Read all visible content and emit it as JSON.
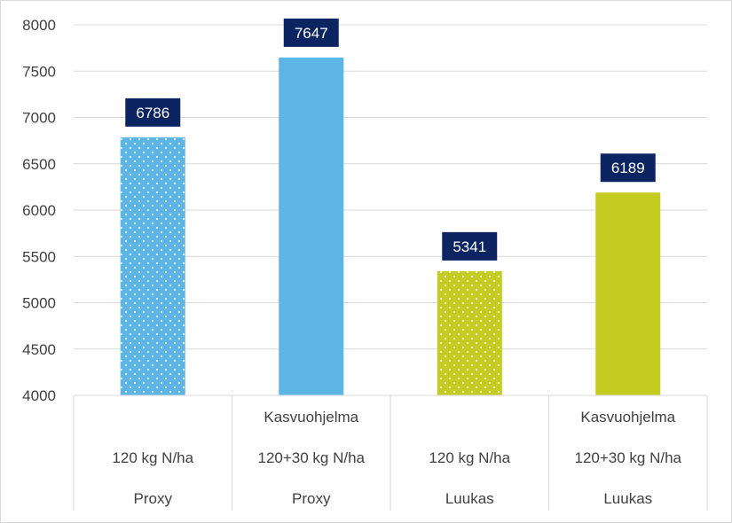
{
  "chart_data": {
    "type": "bar",
    "ylim": [
      4000,
      8000
    ],
    "yticks": [
      4000,
      4500,
      5000,
      5500,
      6000,
      6500,
      7000,
      7500,
      8000
    ],
    "grid": true,
    "categories": [
      [
        "",
        "120 kg N/ha",
        "Proxy"
      ],
      [
        "Kasvuohjelma",
        "120+30 kg N/ha",
        "Proxy"
      ],
      [
        "",
        "120 kg N/ha",
        "Luukas"
      ],
      [
        "Kasvuohjelma",
        "120+30 kg N/ha",
        "Luukas"
      ]
    ],
    "values": [
      6786,
      7647,
      5341,
      6189
    ],
    "bar_colors": [
      "#5db5e6",
      "#5db5e6",
      "#c4cc22",
      "#c4cc22"
    ],
    "bar_patterns": [
      "dotted",
      "solid",
      "dotted",
      "solid"
    ],
    "label_background": "#0c2461"
  }
}
